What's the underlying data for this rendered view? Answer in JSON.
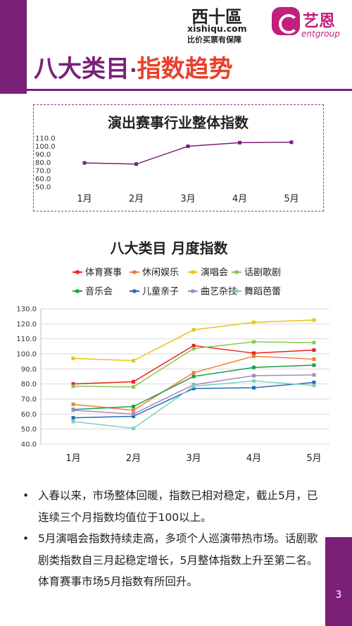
{
  "logo": {
    "xishiqu_cn": "西十區",
    "xishiqu_domain": "xishiqu.com",
    "xishiqu_slogan": "比价买票有保障",
    "brand_cn": "艺恩",
    "brand_en": "entgroup"
  },
  "title": {
    "part1": "八大类目",
    "separator": "·",
    "part2": "指数趋势"
  },
  "colors": {
    "accent": "#7b2077",
    "title_highlight": "#e8402c",
    "brand": "#c0207e"
  },
  "chart_data": [
    {
      "type": "line",
      "title": "演出赛事行业整体指数",
      "categories": [
        "1月",
        "2月",
        "3月",
        "4月",
        "5月"
      ],
      "ylim": [
        50,
        110
      ],
      "yticks": [
        "110.0",
        "100.0",
        "90.0",
        "80.0",
        "70.0",
        "60.0",
        "50.0"
      ],
      "series": [
        {
          "color": "#7b2077",
          "values": [
            79.5,
            78,
            100,
            104.5,
            105
          ]
        }
      ],
      "grid": false,
      "legend": "none"
    },
    {
      "type": "line",
      "title": "八大类目 月度指数",
      "categories": [
        "1月",
        "2月",
        "3月",
        "4月",
        "5月"
      ],
      "ylim": [
        40,
        130
      ],
      "yticks": [
        "130.0",
        "120.0",
        "110.0",
        "100.0",
        "90.0",
        "80.0",
        "70.0",
        "60.0",
        "50.0",
        "40.0"
      ],
      "grid": true,
      "legend": "top",
      "series": [
        {
          "name": "体育赛事",
          "color": "#e8251f",
          "values": [
            80,
            81.5,
            105.5,
            100.5,
            102.5
          ]
        },
        {
          "name": "休闲娱乐",
          "color": "#f07e3a",
          "values": [
            66.5,
            62.5,
            87.5,
            98.5,
            96.5
          ]
        },
        {
          "name": "演唱会",
          "color": "#e8c416",
          "values": [
            97,
            95.5,
            116,
            121,
            122.5
          ]
        },
        {
          "name": "话剧歌剧",
          "color": "#8cc74d",
          "values": [
            78.5,
            78,
            103.5,
            108,
            107.5
          ]
        },
        {
          "name": "音乐会",
          "color": "#1aa04a",
          "values": [
            63,
            65,
            85,
            91,
            92.5
          ]
        },
        {
          "name": "儿童亲子",
          "color": "#1f6eb5",
          "values": [
            57.5,
            58.5,
            77,
            77.5,
            81
          ]
        },
        {
          "name": "曲艺杂技",
          "color": "#a48bc0",
          "values": [
            62.5,
            60,
            79.5,
            85.5,
            86
          ]
        },
        {
          "name": "舞蹈芭蕾",
          "color": "#7fd0bf",
          "values": [
            55,
            50.5,
            78.5,
            82,
            79
          ]
        }
      ]
    }
  ],
  "bullets": [
    "入春以来，市场整体回暖，指数已相对稳定，截止5月，已连续三个月指数均值位于100以上。",
    "5月演唱会指数持续走高，多项个人巡演带热市场。话剧歌剧类指数自三月起稳定增长，5月整体指数上升至第二名。体育赛事市场5月指数有所回升。"
  ],
  "page_number": "3"
}
